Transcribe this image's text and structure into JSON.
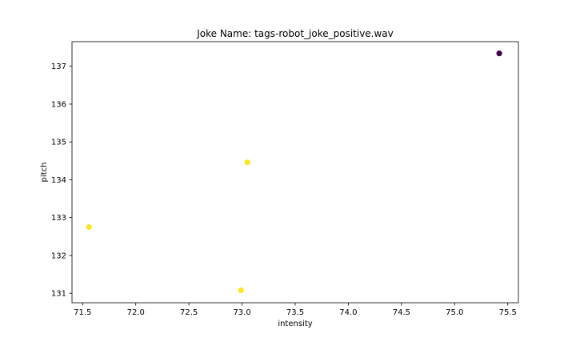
{
  "chart_data": {
    "type": "scatter",
    "title": "Joke Name: tags-robot_joke_positive.wav",
    "xlabel": "intensity",
    "ylabel": "pitch",
    "xlim": [
      71.4,
      75.6
    ],
    "ylim": [
      130.75,
      137.65
    ],
    "xticks": [
      "71.5",
      "72.0",
      "72.5",
      "73.0",
      "73.5",
      "74.0",
      "74.5",
      "75.0",
      "75.5"
    ],
    "yticks": [
      "131",
      "132",
      "133",
      "134",
      "135",
      "136",
      "137"
    ],
    "grid": false,
    "points": [
      {
        "x": 71.56,
        "y": 132.75,
        "color": "#fde725"
      },
      {
        "x": 72.99,
        "y": 131.08,
        "color": "#fde725"
      },
      {
        "x": 73.05,
        "y": 134.46,
        "color": "#fde725"
      },
      {
        "x": 75.42,
        "y": 137.34,
        "color": "#440154"
      }
    ]
  }
}
